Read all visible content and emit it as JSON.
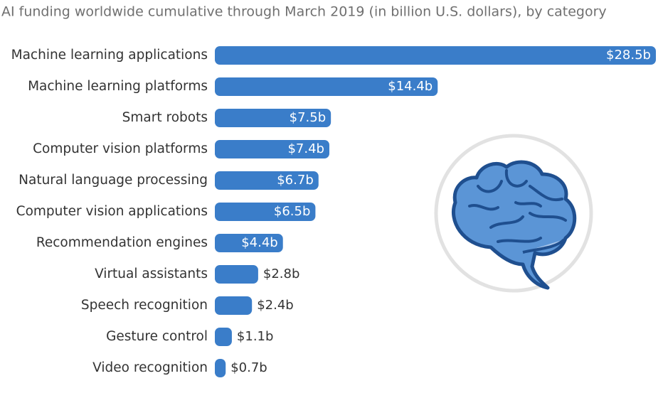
{
  "chart_data": {
    "type": "bar",
    "orientation": "horizontal",
    "subtitle": "AI funding worldwide cumulative through March 2019 (in billion U.S. dollars), by category",
    "categories": [
      "Machine learning applications",
      "Machine learning platforms",
      "Smart robots",
      "Computer vision platforms",
      "Natural language processing",
      "Computer vision applications",
      "Recommendation engines",
      "Virtual assistants",
      "Speech recognition",
      "Gesture control",
      "Video recognition"
    ],
    "values": [
      28.5,
      14.4,
      7.5,
      7.4,
      6.7,
      6.5,
      4.4,
      2.8,
      2.4,
      1.1,
      0.7
    ],
    "value_labels": [
      "$28.5b",
      "$14.4b",
      "$7.5b",
      "$7.4b",
      "$6.7b",
      "$6.5b",
      "$4.4b",
      "$2.8b",
      "$2.4b",
      "$1.1b",
      "$0.7b"
    ],
    "color": "#3a7dc9"
  }
}
